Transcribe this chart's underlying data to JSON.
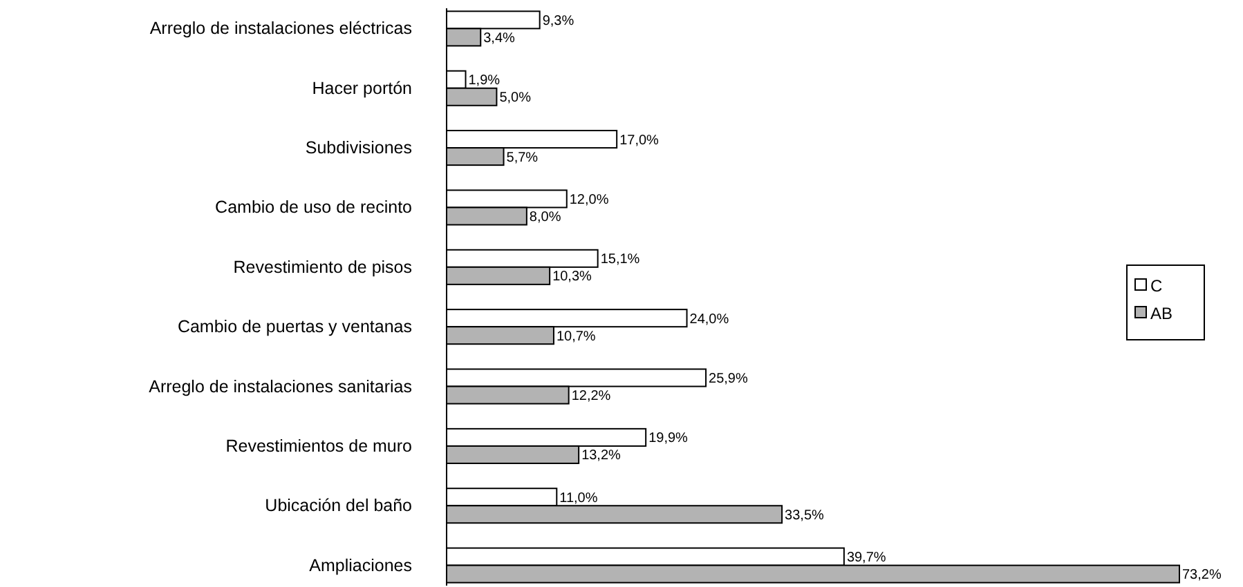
{
  "chart_data": {
    "type": "bar",
    "orientation": "horizontal",
    "legend": "right",
    "categories": [
      "Arreglo de instalaciones eléctricas",
      "Hacer portón",
      "Subdivisiones",
      "Cambio de uso de recinto",
      "Revestimiento de pisos",
      "Cambio de puertas y ventanas",
      "Arreglo de instalaciones sanitarias",
      "Revestimientos de muro",
      "Ubicación del baño",
      "Ampliaciones"
    ],
    "series": [
      {
        "name": "C",
        "color": "#ffffff",
        "values": [
          9.3,
          1.9,
          17.0,
          12.0,
          15.1,
          24.0,
          25.9,
          19.9,
          11.0,
          39.7
        ],
        "value_labels": [
          "9,3%",
          "1,9%",
          "17,0%",
          "12,0%",
          "15,1%",
          "24,0%",
          "25,9%",
          "19,9%",
          "11,0%",
          "39,7%"
        ]
      },
      {
        "name": "AB",
        "color": "#b3b3b3",
        "values": [
          3.4,
          5.0,
          5.7,
          8.0,
          10.3,
          10.7,
          12.2,
          13.2,
          33.5,
          73.2
        ],
        "value_labels": [
          "3,4%",
          "5,0%",
          "5,7%",
          "8,0%",
          "10,3%",
          "10,7%",
          "12,2%",
          "13,2%",
          "33,5%",
          "73,2%"
        ]
      }
    ]
  }
}
